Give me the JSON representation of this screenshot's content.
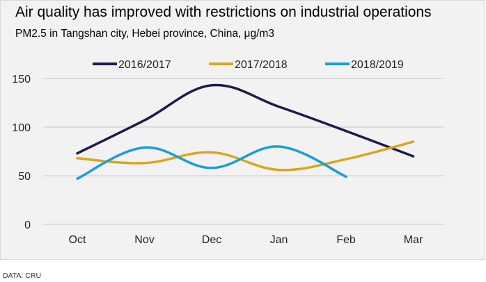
{
  "header": {
    "title": "Air quality has improved with restrictions on industrial operations",
    "subtitle": "PM2.5 in Tangshan city, Hebei province, China, μg/m3"
  },
  "source": "DATA: CRU",
  "colors": {
    "2016/2017": "#1f1a4b",
    "2017/2018": "#d9a71c",
    "2018/2019": "#1a9cd8",
    "grid": "#c8c8c8",
    "background": "#f2f2f2"
  },
  "chart_data": {
    "type": "line",
    "categories": [
      "Oct",
      "Nov",
      "Dec",
      "Jan",
      "Feb",
      "Mar"
    ],
    "series": [
      {
        "name": "2016/2017",
        "values": [
          73,
          107,
          143,
          121,
          96,
          70
        ]
      },
      {
        "name": "2017/2018",
        "values": [
          68,
          63,
          74,
          56,
          67,
          85
        ]
      },
      {
        "name": "2018/2019",
        "values": [
          47,
          79,
          58,
          80,
          49,
          null
        ]
      }
    ],
    "yticks": [
      0,
      50,
      100,
      150
    ],
    "ylim": [
      0,
      150
    ],
    "grid": true,
    "legend": "top"
  }
}
